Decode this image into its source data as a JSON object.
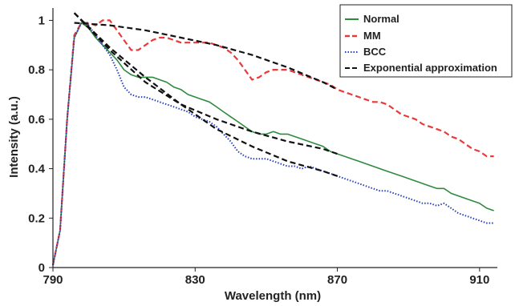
{
  "chart_data": {
    "type": "line",
    "xlabel": "Wavelength (nm)",
    "ylabel": "Intensity (a.u.)",
    "xlim": [
      790,
      915
    ],
    "ylim": [
      0,
      1.05
    ],
    "xticks": [
      790,
      830,
      870,
      910
    ],
    "xtick_labels": [
      "790",
      "830",
      "870",
      "910"
    ],
    "yticks": [
      0,
      0.2,
      0.4,
      0.6,
      0.8,
      1
    ],
    "ytick_labels": [
      "0",
      "0.2",
      "0.4",
      "0.6",
      "0.8",
      "1"
    ],
    "grid": false,
    "legend_position": "top-right",
    "series": [
      {
        "name": "Normal",
        "color": "#2e8b3e",
        "style": "solid",
        "x": [
          790,
          792,
          794,
          796,
          798,
          800,
          802,
          804,
          806,
          808,
          810,
          812,
          814,
          816,
          818,
          820,
          822,
          824,
          826,
          828,
          830,
          832,
          834,
          836,
          838,
          840,
          842,
          844,
          846,
          848,
          850,
          852,
          854,
          856,
          858,
          860,
          862,
          864,
          866,
          868,
          870,
          872,
          874,
          876,
          878,
          880,
          882,
          884,
          886,
          888,
          890,
          892,
          894,
          896,
          898,
          900,
          902,
          904,
          906,
          908,
          910,
          912,
          914
        ],
        "y": [
          0.01,
          0.15,
          0.6,
          0.93,
          0.99,
          0.97,
          0.93,
          0.9,
          0.87,
          0.84,
          0.8,
          0.78,
          0.77,
          0.77,
          0.77,
          0.76,
          0.75,
          0.73,
          0.72,
          0.7,
          0.69,
          0.68,
          0.67,
          0.65,
          0.63,
          0.61,
          0.59,
          0.57,
          0.55,
          0.54,
          0.54,
          0.55,
          0.54,
          0.54,
          0.53,
          0.52,
          0.51,
          0.5,
          0.49,
          0.47,
          0.46,
          0.45,
          0.44,
          0.43,
          0.42,
          0.41,
          0.4,
          0.39,
          0.38,
          0.37,
          0.36,
          0.35,
          0.34,
          0.33,
          0.32,
          0.32,
          0.3,
          0.29,
          0.28,
          0.27,
          0.26,
          0.24,
          0.23
        ]
      },
      {
        "name": "MM",
        "color": "#e83a3a",
        "style": "dashed",
        "x": [
          790,
          792,
          794,
          796,
          798,
          800,
          802,
          804,
          806,
          808,
          810,
          812,
          814,
          816,
          818,
          820,
          822,
          824,
          826,
          828,
          830,
          832,
          834,
          836,
          838,
          840,
          842,
          844,
          846,
          848,
          850,
          852,
          854,
          856,
          858,
          860,
          862,
          864,
          866,
          868,
          870,
          872,
          874,
          876,
          878,
          880,
          882,
          884,
          886,
          888,
          890,
          892,
          894,
          896,
          898,
          900,
          902,
          904,
          906,
          908,
          910,
          912,
          914
        ],
        "y": [
          0.01,
          0.15,
          0.6,
          0.94,
          0.99,
          0.99,
          0.98,
          1.0,
          1.0,
          0.96,
          0.92,
          0.88,
          0.88,
          0.9,
          0.92,
          0.93,
          0.93,
          0.92,
          0.91,
          0.91,
          0.91,
          0.91,
          0.91,
          0.9,
          0.89,
          0.87,
          0.84,
          0.8,
          0.76,
          0.77,
          0.79,
          0.8,
          0.8,
          0.8,
          0.79,
          0.78,
          0.77,
          0.76,
          0.75,
          0.74,
          0.72,
          0.71,
          0.7,
          0.69,
          0.68,
          0.67,
          0.67,
          0.66,
          0.64,
          0.62,
          0.61,
          0.6,
          0.58,
          0.57,
          0.56,
          0.55,
          0.53,
          0.52,
          0.5,
          0.48,
          0.47,
          0.45,
          0.45
        ]
      },
      {
        "name": "BCC",
        "color": "#2a3fbf",
        "style": "dotted",
        "x": [
          790,
          792,
          794,
          796,
          798,
          800,
          802,
          804,
          806,
          808,
          810,
          812,
          814,
          816,
          818,
          820,
          822,
          824,
          826,
          828,
          830,
          832,
          834,
          836,
          838,
          840,
          842,
          844,
          846,
          848,
          850,
          852,
          854,
          856,
          858,
          860,
          862,
          864,
          866,
          868,
          870,
          872,
          874,
          876,
          878,
          880,
          882,
          884,
          886,
          888,
          890,
          892,
          894,
          896,
          898,
          900,
          902,
          904,
          906,
          908,
          910,
          912,
          914
        ],
        "y": [
          0.01,
          0.15,
          0.6,
          0.93,
          0.99,
          0.98,
          0.94,
          0.9,
          0.86,
          0.8,
          0.73,
          0.7,
          0.69,
          0.69,
          0.68,
          0.67,
          0.66,
          0.65,
          0.64,
          0.63,
          0.61,
          0.6,
          0.59,
          0.57,
          0.54,
          0.51,
          0.47,
          0.45,
          0.44,
          0.44,
          0.44,
          0.43,
          0.42,
          0.41,
          0.41,
          0.4,
          0.41,
          0.4,
          0.39,
          0.38,
          0.37,
          0.36,
          0.35,
          0.34,
          0.33,
          0.32,
          0.31,
          0.31,
          0.3,
          0.29,
          0.28,
          0.27,
          0.26,
          0.26,
          0.25,
          0.26,
          0.24,
          0.22,
          0.21,
          0.2,
          0.19,
          0.18,
          0.18
        ]
      },
      {
        "name": "Exponential approximation",
        "color": "#111111",
        "style": "dashed",
        "segments": [
          {
            "x": [
              796,
              806,
              816,
              826,
              836,
              846,
              856,
              866,
              870
            ],
            "y": [
              0.99,
              0.98,
              0.96,
              0.93,
              0.9,
              0.86,
              0.81,
              0.75,
              0.72
            ]
          },
          {
            "x": [
              796,
              806,
              816,
              826,
              836,
              846,
              856,
              866,
              870
            ],
            "y": [
              1.03,
              0.88,
              0.75,
              0.66,
              0.6,
              0.55,
              0.51,
              0.48,
              0.46
            ]
          },
          {
            "x": [
              796,
              806,
              816,
              826,
              836,
              846,
              856,
              866,
              870
            ],
            "y": [
              1.03,
              0.89,
              0.77,
              0.66,
              0.56,
              0.49,
              0.43,
              0.39,
              0.37
            ]
          }
        ]
      }
    ]
  }
}
